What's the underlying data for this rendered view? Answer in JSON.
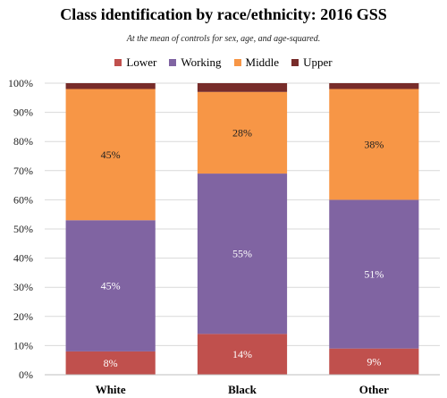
{
  "chart_data": {
    "type": "bar",
    "stacked": true,
    "title": "Class identification by race/ethnicity: 2016 GSS",
    "subtitle": "At the mean of controls for sex, age, and age-squared.",
    "xlabel": "",
    "ylabel": "",
    "ylim": [
      0,
      100
    ],
    "y_ticks": [
      "0%",
      "10%",
      "20%",
      "30%",
      "40%",
      "50%",
      "60%",
      "70%",
      "80%",
      "90%",
      "100%"
    ],
    "categories": [
      "White",
      "Black",
      "Other"
    ],
    "legend_position": "top",
    "series": [
      {
        "name": "Lower",
        "color": "#c0504d",
        "values": [
          8,
          14,
          9
        ],
        "labels": [
          "8%",
          "14%",
          "9%"
        ],
        "label_color": "#ffffff"
      },
      {
        "name": "Working",
        "color": "#8064a2",
        "values": [
          45,
          55,
          51
        ],
        "labels": [
          "45%",
          "55%",
          "51%"
        ],
        "label_color": "#ffffff"
      },
      {
        "name": "Middle",
        "color": "#f79646",
        "values": [
          45,
          28,
          38
        ],
        "labels": [
          "45%",
          "28%",
          "38%"
        ],
        "label_color": "#222222"
      },
      {
        "name": "Upper",
        "color": "#772c2a",
        "values": [
          2,
          3,
          2
        ],
        "labels": [
          "",
          "",
          ""
        ],
        "label_color": "#ffffff"
      }
    ]
  }
}
